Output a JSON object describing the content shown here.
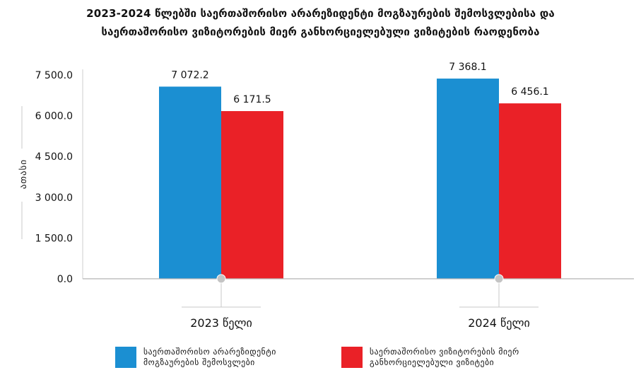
{
  "title": {
    "line1": "2023-2024 წლებში საერთაშორისო არარეზიდენტი მოგზაურების შემოსვლებისა და",
    "line2": "საერთაშორისო ვიზიტორების მიერ განხორციელებული ვიზიტების რაოდენობა"
  },
  "chart_data": {
    "type": "bar",
    "categories": [
      "2023 წელი",
      "2024 წელი"
    ],
    "series": [
      {
        "name": "საერთაშორისო არარეზიდენტი მოგზაურების შემოსვლები",
        "values": [
          7072.2,
          7368.1
        ],
        "labels": [
          "7 072.2",
          "7 368.1"
        ],
        "color": "#1b8fd2"
      },
      {
        "name": "საერთაშორისო ვიზიტორების მიერ განხორციელებული ვიზიტები",
        "values": [
          6171.5,
          6456.1
        ],
        "labels": [
          "6 171.5",
          "6 456.1"
        ],
        "color": "#ea2127"
      }
    ],
    "yticks": [
      0,
      1500,
      3000,
      4500,
      6000,
      7500
    ],
    "ytick_labels": [
      "0.0",
      "1 500.0",
      "3 000.0",
      "4 500.0",
      "6 000.0",
      "7 500.0"
    ],
    "ylabel": "ათასი",
    "ylim": [
      0,
      7500
    ],
    "grid": false,
    "legend_position": "bottom"
  }
}
